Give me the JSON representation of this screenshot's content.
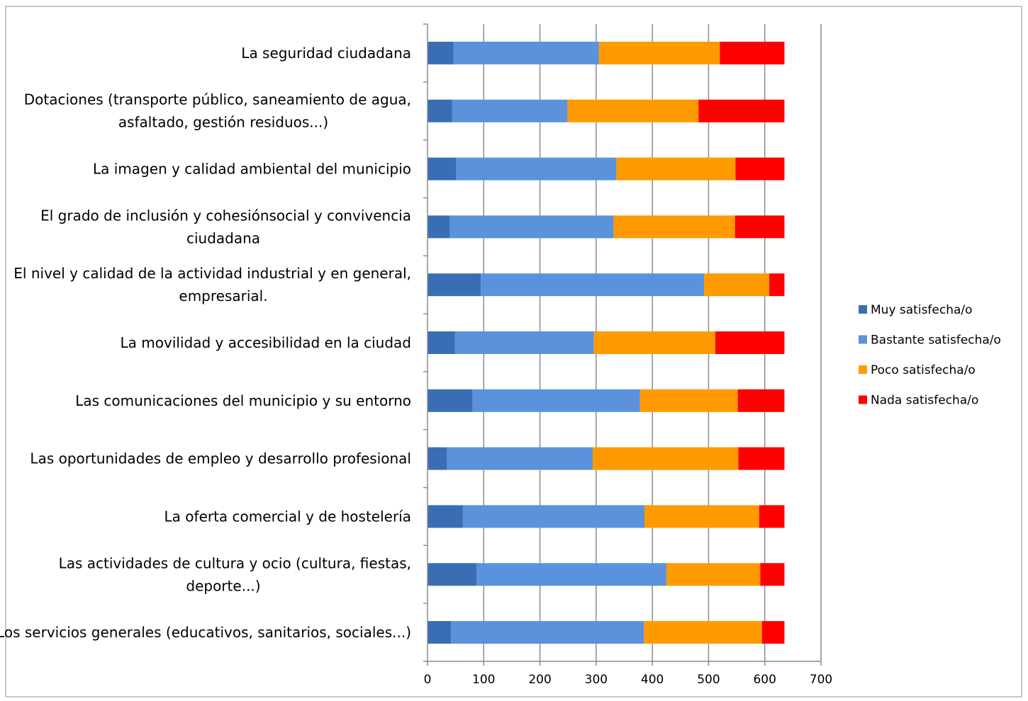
{
  "chart_data": {
    "type": "bar",
    "orientation": "horizontal",
    "stacked": true,
    "categories": [
      [
        "La seguridad ciudadana"
      ],
      [
        "Dotaciones (transporte público, saneamiento de agua,",
        "asfaltado, gestión residuos...)"
      ],
      [
        "La imagen y calidad ambiental del municipio"
      ],
      [
        "El grado de inclusión y cohesiónsocial y convivencia",
        "ciudadana"
      ],
      [
        "El nivel y calidad de la actividad industrial y en general,",
        "empresarial."
      ],
      [
        "La movilidad y accesibilidad en la ciudad"
      ],
      [
        "Las comunicaciones del municipio y su entorno"
      ],
      [
        "Las oportunidades  de empleo y desarrollo profesional"
      ],
      [
        "La oferta comercial y de hostelería"
      ],
      [
        "Las actividades de cultura y ocio (cultura, fiestas,",
        "deporte...)"
      ],
      [
        "Los servicios generales (educativos, sanitarios, sociales...)"
      ]
    ],
    "series": [
      {
        "name": "Muy satisfecha/o",
        "color": "#3a6eb4",
        "values": [
          46,
          44,
          51,
          40,
          95,
          49,
          80,
          35,
          63,
          87,
          42
        ]
      },
      {
        "name": "Bastante satisfecha/o",
        "color": "#5a92dc",
        "values": [
          259,
          205,
          285,
          291,
          397,
          247,
          298,
          259,
          323,
          338,
          343
        ]
      },
      {
        "name": "Poco satisfecha/o",
        "color": "#ff9a00",
        "values": [
          215,
          233,
          212,
          216,
          116,
          216,
          174,
          259,
          204,
          167,
          210
        ]
      },
      {
        "name": "Nada satisfecha/o",
        "color": "#ff0000",
        "values": [
          115,
          153,
          87,
          88,
          27,
          123,
          83,
          82,
          45,
          43,
          40
        ]
      }
    ],
    "xlim": [
      0,
      700
    ],
    "xticks": [
      0,
      100,
      200,
      300,
      400,
      500,
      600,
      700
    ],
    "grid": "vertical",
    "legend_position": "right",
    "title": "",
    "xlabel": "",
    "ylabel": ""
  }
}
